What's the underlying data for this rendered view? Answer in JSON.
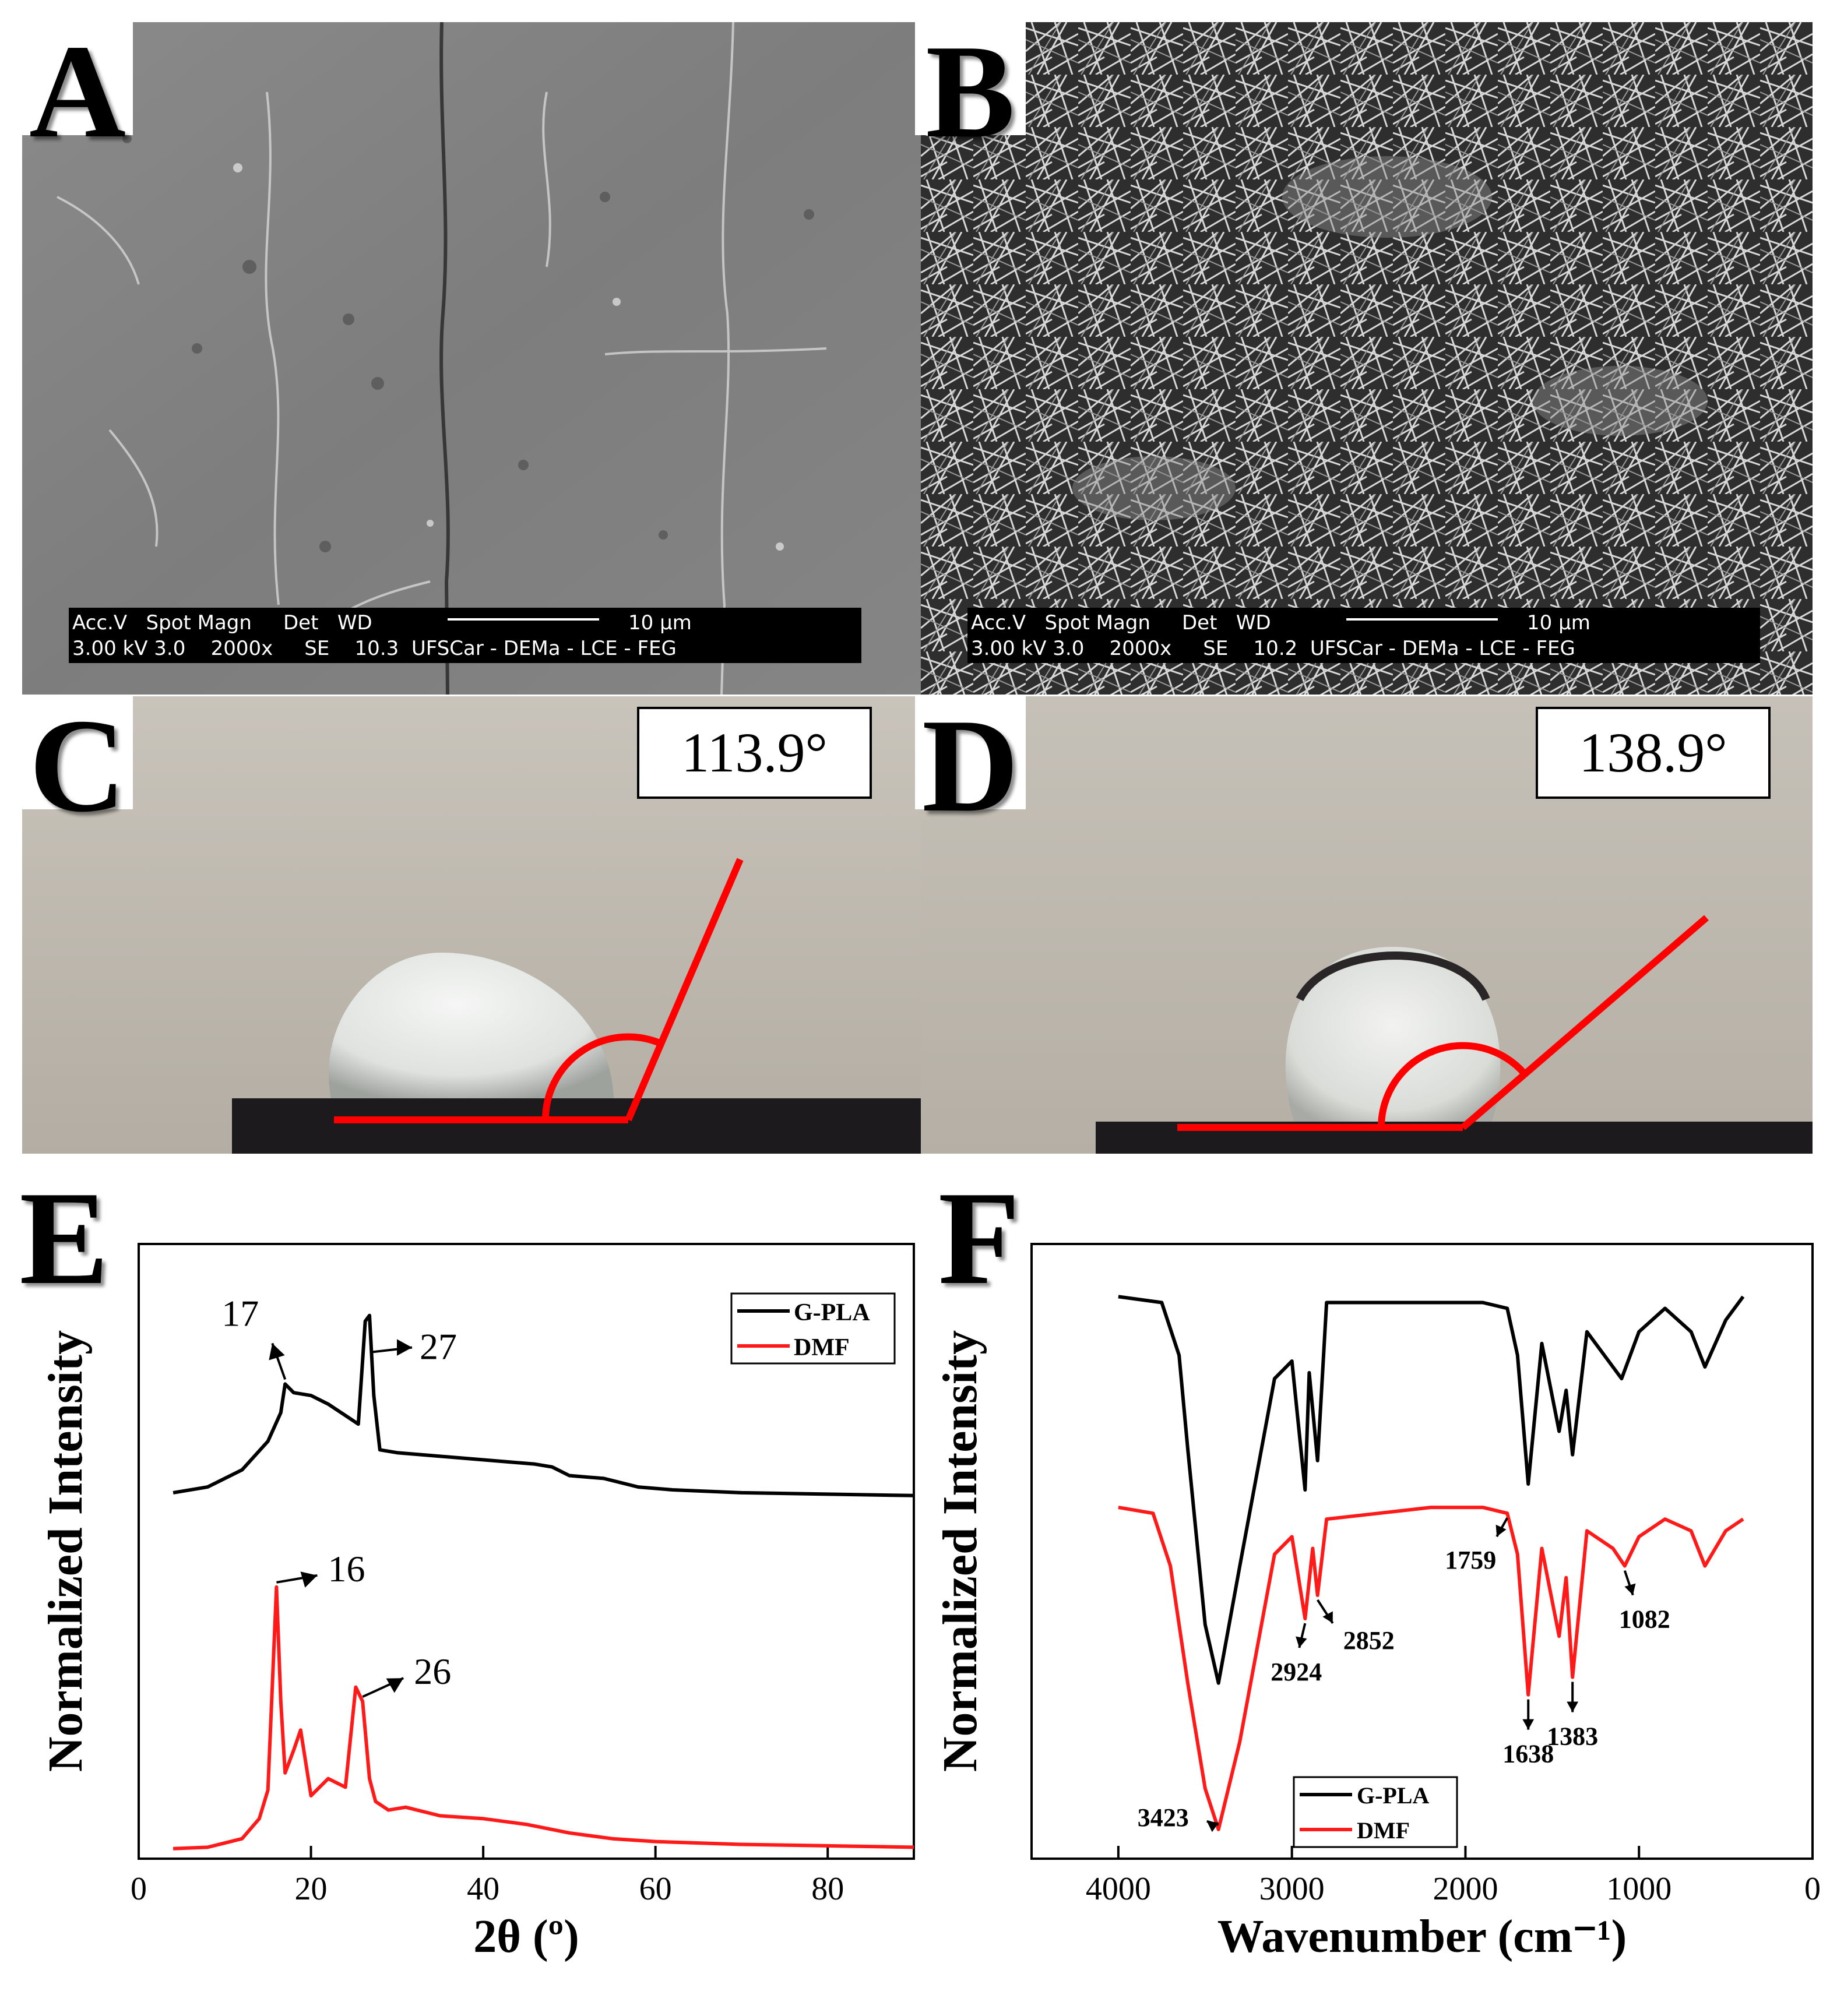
{
  "panels": {
    "a": {
      "letter": "A",
      "sem": {
        "line1": "Acc.V   Spot Magn     Det   WD",
        "line2": "3.00 kV 3.0    2000x     SE    10.3  UFSCar - DEMa - LCE - FEG",
        "scale": "10 μm"
      }
    },
    "b": {
      "letter": "B",
      "sem": {
        "line1": "Acc.V   Spot Magn     Det   WD",
        "line2": "3.00 kV 3.0    2000x     SE    10.2  UFSCar - DEMa - LCE - FEG",
        "scale": "10 μm"
      }
    },
    "c": {
      "letter": "C",
      "angle": "113.9°",
      "angle_value": 113.9
    },
    "d": {
      "letter": "D",
      "angle": "138.9°",
      "angle_value": 138.9
    },
    "e": {
      "letter": "E"
    },
    "f": {
      "letter": "F"
    }
  },
  "colors": {
    "g_pla": "#000000",
    "dmf": "#ff1a1a",
    "angle_line": "#ff0000"
  },
  "chart_data": [
    {
      "type": "line",
      "panel": "E",
      "xlabel": "2θ (º)",
      "ylabel": "Normalized Intensity",
      "xlim": [
        0,
        90
      ],
      "xticks": [
        "0",
        "20",
        "40",
        "60",
        "80"
      ],
      "legend": [
        "G-PLA",
        "DMF"
      ],
      "legend_position": "top-right",
      "series": [
        {
          "name": "G-PLA",
          "x": [
            4,
            8,
            12,
            15,
            16.5,
            17,
            18,
            20,
            22,
            24,
            25.5,
            26.3,
            26.8,
            27.3,
            28,
            30,
            34,
            38,
            42,
            46,
            48,
            50,
            54,
            58,
            62,
            70,
            80,
            90
          ],
          "y": [
            1.28,
            1.3,
            1.36,
            1.46,
            1.56,
            1.66,
            1.63,
            1.62,
            1.59,
            1.55,
            1.52,
            1.88,
            1.9,
            1.62,
            1.43,
            1.42,
            1.41,
            1.4,
            1.39,
            1.38,
            1.37,
            1.34,
            1.33,
            1.3,
            1.29,
            1.28,
            1.275,
            1.27
          ]
        },
        {
          "name": "DMF",
          "x": [
            4,
            8,
            12,
            14,
            15,
            16,
            16.5,
            17,
            18,
            18.8,
            20,
            22,
            24,
            25.2,
            26,
            26.8,
            27.5,
            29,
            31,
            35,
            40,
            45,
            50,
            55,
            60,
            70,
            80,
            90
          ],
          "y": [
            0.035,
            0.04,
            0.07,
            0.14,
            0.24,
            0.95,
            0.55,
            0.3,
            0.38,
            0.45,
            0.22,
            0.28,
            0.25,
            0.6,
            0.55,
            0.28,
            0.2,
            0.17,
            0.18,
            0.15,
            0.14,
            0.12,
            0.09,
            0.07,
            0.06,
            0.05,
            0.045,
            0.04
          ]
        }
      ],
      "annotations": [
        {
          "text": "17",
          "x": 17
        },
        {
          "text": "27",
          "x": 27
        },
        {
          "text": "16",
          "x": 16
        },
        {
          "text": "26",
          "x": 26
        }
      ]
    },
    {
      "type": "line",
      "panel": "F",
      "xlabel": "Wavenumber (cm⁻¹)",
      "ylabel": "Normalized Intensity",
      "xlim": [
        4500,
        0
      ],
      "xticks": [
        "4000",
        "3000",
        "2000",
        "1000",
        "0"
      ],
      "legend": [
        "G-PLA",
        "DMF"
      ],
      "legend_position": "bottom-left",
      "series": [
        {
          "name": "G-PLA",
          "x": [
            4000,
            3750,
            3650,
            3600,
            3500,
            3423,
            3300,
            3100,
            3000,
            2924,
            2900,
            2852,
            2800,
            2500,
            2200,
            1900,
            1759,
            1700,
            1638,
            1560,
            1460,
            1420,
            1383,
            1300,
            1100,
            1000,
            850,
            700,
            620,
            500,
            400
          ],
          "y": [
            0.96,
            0.95,
            0.86,
            0.7,
            0.4,
            0.3,
            0.5,
            0.82,
            0.85,
            0.63,
            0.83,
            0.68,
            0.95,
            0.95,
            0.95,
            0.95,
            0.94,
            0.86,
            0.64,
            0.88,
            0.73,
            0.8,
            0.69,
            0.9,
            0.82,
            0.9,
            0.94,
            0.9,
            0.84,
            0.92,
            0.96
          ]
        },
        {
          "name": "DMF",
          "x": [
            4000,
            3800,
            3700,
            3600,
            3500,
            3423,
            3300,
            3100,
            3000,
            2924,
            2880,
            2852,
            2800,
            2500,
            2200,
            1900,
            1759,
            1700,
            1638,
            1560,
            1460,
            1420,
            1383,
            1300,
            1150,
            1082,
            1000,
            850,
            700,
            620,
            500,
            400
          ],
          "y": [
            0.6,
            0.59,
            0.5,
            0.3,
            0.12,
            0.05,
            0.2,
            0.52,
            0.55,
            0.41,
            0.53,
            0.45,
            0.58,
            0.59,
            0.6,
            0.6,
            0.59,
            0.52,
            0.28,
            0.53,
            0.38,
            0.48,
            0.31,
            0.56,
            0.53,
            0.5,
            0.55,
            0.58,
            0.56,
            0.5,
            0.56,
            0.58
          ]
        }
      ],
      "annotations": [
        {
          "text": "3423",
          "x": 3423
        },
        {
          "text": "2924",
          "x": 2924
        },
        {
          "text": "2852",
          "x": 2852
        },
        {
          "text": "1759",
          "x": 1759
        },
        {
          "text": "1638",
          "x": 1638
        },
        {
          "text": "1383",
          "x": 1383
        },
        {
          "text": "1082",
          "x": 1082
        }
      ]
    }
  ]
}
